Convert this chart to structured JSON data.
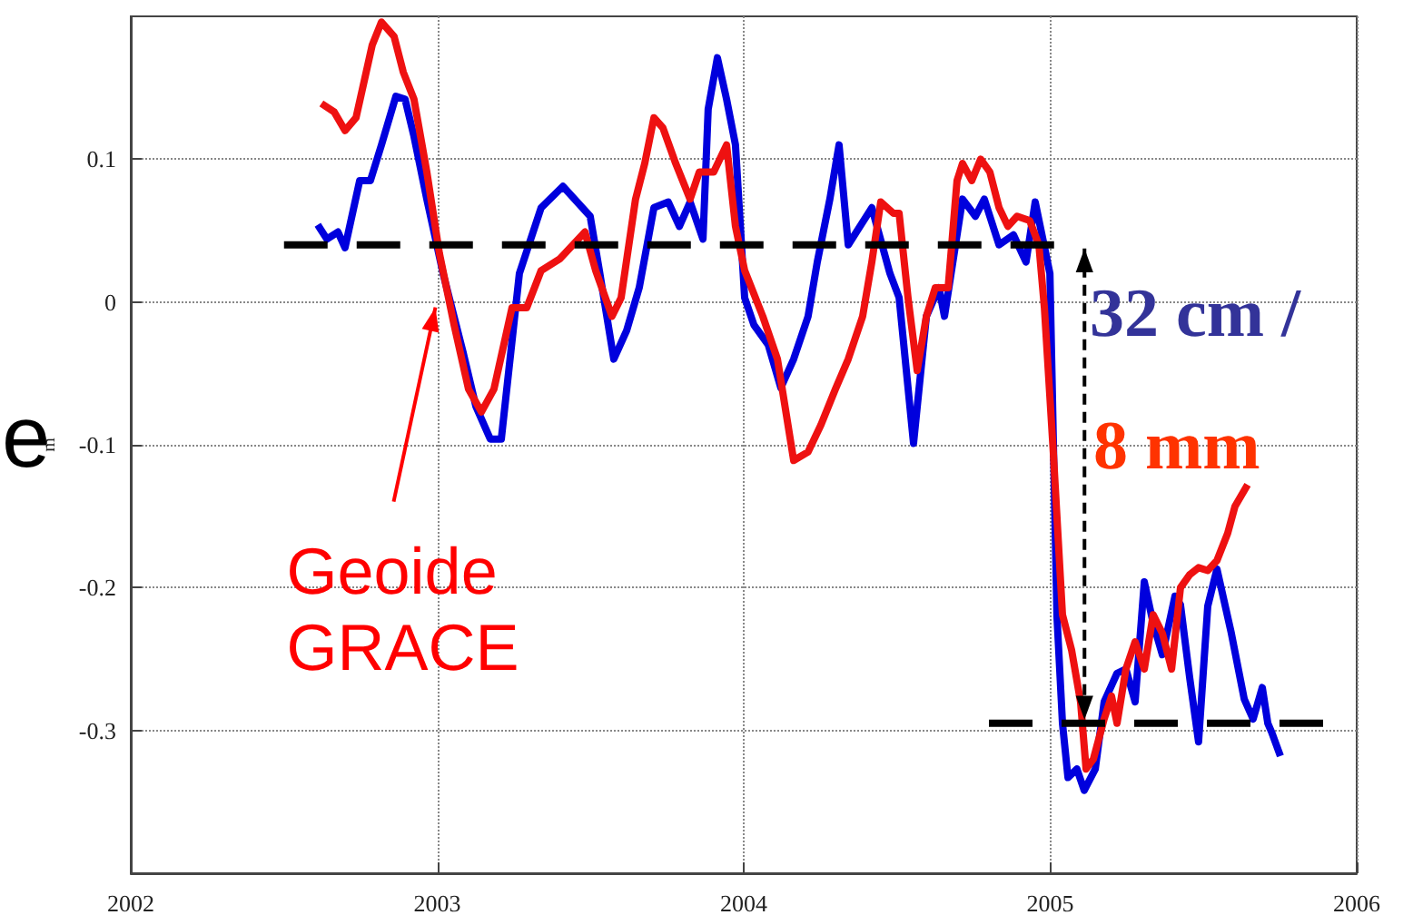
{
  "chart_data": {
    "type": "line",
    "ylabel": "m",
    "xlim": [
      2002,
      2006
    ],
    "xticks": [
      2002,
      2003,
      2004,
      2005,
      2006
    ],
    "ylim": [
      -0.4,
      0.2
    ],
    "yticks": [
      -0.3,
      -0.2,
      -0.1,
      0,
      0.1
    ],
    "grid": true,
    "marker": "none",
    "line_style": "solid",
    "annotations": [
      "e",
      {
        "text": "Geoide\nGRACE",
        "x": 2003.0,
        "y": 0.0
      },
      "32 cm /",
      "8 mm"
    ],
    "series": [
      {
        "color": "#0000dd",
        "x": [
          2002.61,
          2002.64,
          2002.676,
          2002.699,
          2002.747,
          2002.782,
          2002.818,
          2002.865,
          2002.895,
          2002.924,
          2002.966,
          2003.019,
          2003.084,
          2003.126,
          2003.173,
          2003.209,
          2003.268,
          2003.339,
          2003.41,
          2003.499,
          2003.529,
          2003.576,
          2003.618,
          2003.659,
          2003.707,
          2003.754,
          2003.79,
          2003.825,
          2003.867,
          2003.884,
          2003.914,
          2003.944,
          2003.973,
          2004.003,
          2004.033,
          2004.08,
          2004.121,
          2004.163,
          2004.21,
          2004.24,
          2004.281,
          2004.311,
          2004.341,
          2004.418,
          2004.477,
          2004.507,
          2004.554,
          2004.596,
          2004.637,
          2004.655,
          2004.714,
          2004.756,
          2004.785,
          2004.833,
          2004.88,
          2004.921,
          2004.951,
          2004.999,
          2005.022,
          2005.04,
          2005.058,
          2005.087,
          2005.111,
          2005.147,
          2005.176,
          2005.218,
          2005.247,
          2005.277,
          2005.307,
          2005.336,
          2005.366,
          2005.407,
          2005.425,
          2005.455,
          2005.484,
          2005.514,
          2005.544,
          2005.591,
          2005.633,
          2005.662,
          2005.692,
          2005.71,
          2005.722,
          2005.751
        ],
        "values": [
          0.054,
          0.044,
          0.049,
          0.038,
          0.085,
          0.085,
          0.11,
          0.144,
          0.142,
          0.116,
          0.072,
          0.02,
          -0.035,
          -0.073,
          -0.096,
          -0.096,
          0.02,
          0.066,
          0.081,
          0.06,
          0.022,
          -0.04,
          -0.02,
          0.01,
          0.066,
          0.07,
          0.053,
          0.07,
          0.044,
          0.135,
          0.171,
          0.142,
          0.11,
          0.003,
          -0.016,
          -0.03,
          -0.06,
          -0.04,
          -0.01,
          0.028,
          0.072,
          0.11,
          0.04,
          0.066,
          0.02,
          0.003,
          -0.099,
          -0.01,
          0.01,
          -0.01,
          0.072,
          0.06,
          0.072,
          0.04,
          0.047,
          0.028,
          0.07,
          0.02,
          -0.22,
          -0.295,
          -0.333,
          -0.327,
          -0.342,
          -0.327,
          -0.28,
          -0.26,
          -0.257,
          -0.28,
          -0.196,
          -0.225,
          -0.247,
          -0.206,
          -0.212,
          -0.263,
          -0.308,
          -0.213,
          -0.187,
          -0.232,
          -0.278,
          -0.292,
          -0.27,
          -0.295,
          -0.301,
          -0.318
        ]
      },
      {
        "color": "#ee1111",
        "x": [
          2002.622,
          2002.664,
          2002.699,
          2002.735,
          2002.788,
          2002.818,
          2002.859,
          2002.889,
          2002.924,
          2002.966,
          2003.007,
          2003.055,
          2003.102,
          2003.144,
          2003.185,
          2003.244,
          2003.292,
          2003.339,
          2003.399,
          2003.482,
          2003.517,
          2003.57,
          2003.6,
          2003.647,
          2003.677,
          2003.707,
          2003.736,
          2003.778,
          2003.825,
          2003.855,
          2003.902,
          2003.944,
          2003.973,
          2004.003,
          2004.062,
          2004.11,
          2004.163,
          2004.21,
          2004.252,
          2004.299,
          2004.341,
          2004.388,
          2004.418,
          2004.447,
          2004.489,
          2004.507,
          2004.536,
          2004.566,
          2004.596,
          2004.625,
          2004.667,
          2004.696,
          2004.714,
          2004.744,
          2004.773,
          2004.803,
          2004.833,
          2004.862,
          2004.892,
          2004.933,
          2004.963,
          2004.981,
          2005.01,
          2005.04,
          2005.07,
          2005.099,
          2005.117,
          2005.141,
          2005.176,
          2005.2,
          2005.218,
          2005.247,
          2005.277,
          2005.307,
          2005.336,
          2005.366,
          2005.396,
          2005.425,
          2005.455,
          2005.484,
          2005.514,
          2005.544,
          2005.579,
          2005.603,
          2005.644
        ],
        "values": [
          0.139,
          0.133,
          0.12,
          0.129,
          0.18,
          0.196,
          0.186,
          0.161,
          0.142,
          0.091,
          0.034,
          -0.016,
          -0.061,
          -0.077,
          -0.061,
          -0.004,
          -0.004,
          0.022,
          0.03,
          0.049,
          0.022,
          -0.01,
          0.003,
          0.072,
          0.097,
          0.129,
          0.122,
          0.097,
          0.072,
          0.091,
          0.091,
          0.11,
          0.053,
          0.022,
          -0.01,
          -0.04,
          -0.111,
          -0.105,
          -0.086,
          -0.061,
          -0.04,
          -0.01,
          0.028,
          0.07,
          0.062,
          0.062,
          0.003,
          -0.048,
          -0.01,
          0.01,
          0.01,
          0.085,
          0.097,
          0.085,
          0.1,
          0.091,
          0.066,
          0.053,
          0.06,
          0.057,
          0.04,
          -0.004,
          -0.105,
          -0.219,
          -0.244,
          -0.28,
          -0.327,
          -0.32,
          -0.292,
          -0.276,
          -0.295,
          -0.257,
          -0.238,
          -0.257,
          -0.219,
          -0.232,
          -0.257,
          -0.2,
          -0.191,
          -0.186,
          -0.188,
          -0.181,
          -0.162,
          -0.143,
          -0.128
        ]
      },
      {
        "color": "#000000",
        "line_style": "dashed",
        "x": [
          2002.5,
          2005.1
        ],
        "values": [
          0.04,
          0.04
        ]
      },
      {
        "color": "#000000",
        "line_style": "dashed",
        "x": [
          2004.8,
          2005.95
        ],
        "values": [
          -0.295,
          -0.295
        ]
      }
    ]
  }
}
